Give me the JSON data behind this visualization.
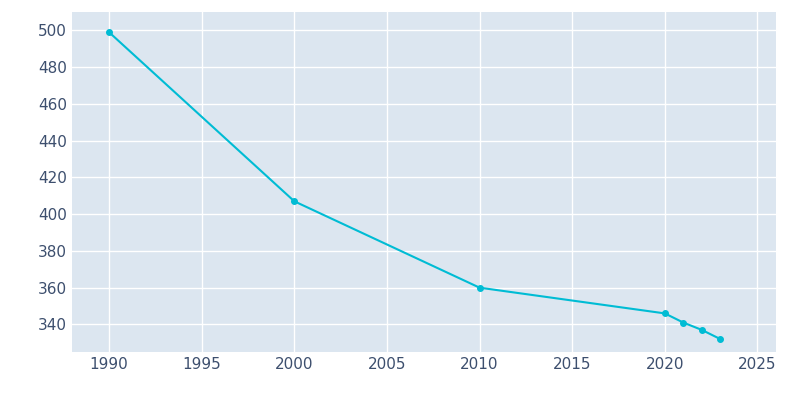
{
  "years": [
    1990,
    2000,
    2010,
    2020,
    2021,
    2022,
    2023
  ],
  "population": [
    499,
    407,
    360,
    346,
    341,
    337,
    332
  ],
  "line_color": "#00bcd4",
  "marker_color": "#00bcd4",
  "background_color": "#ffffff",
  "axes_facecolor": "#dce6f0",
  "grid_color": "#ffffff",
  "tick_color": "#3d4f6e",
  "xlim": [
    1988,
    2026
  ],
  "ylim": [
    325,
    510
  ],
  "yticks": [
    340,
    360,
    380,
    400,
    420,
    440,
    460,
    480,
    500
  ],
  "xticks": [
    1990,
    1995,
    2000,
    2005,
    2010,
    2015,
    2020,
    2025
  ],
  "line_width": 1.5,
  "marker_size": 4
}
